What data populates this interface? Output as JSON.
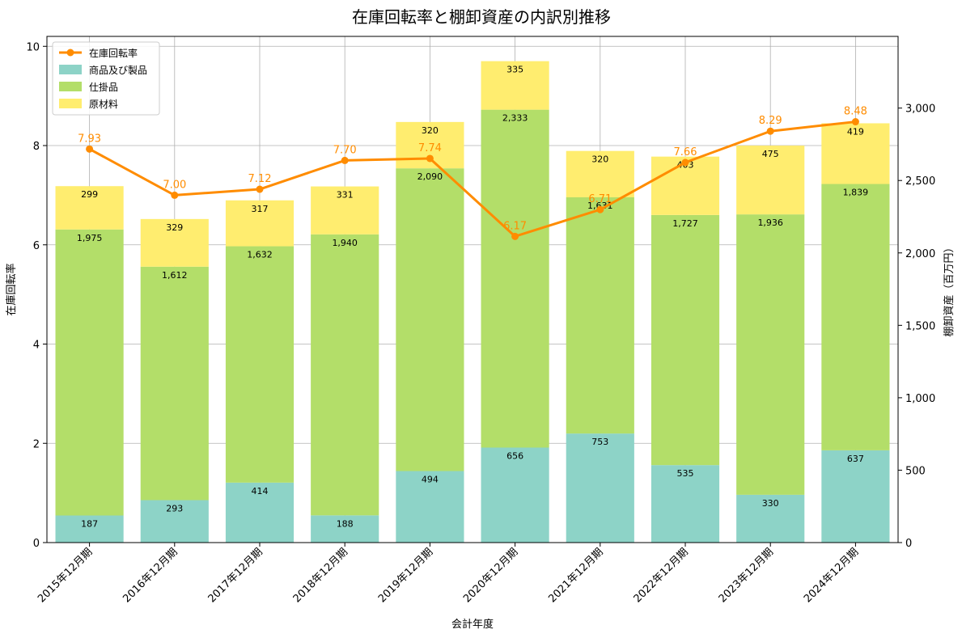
{
  "chart_data": {
    "type": "bar",
    "stacked": true,
    "title": "在庫回転率と棚卸資産の内訳別推移",
    "xlabel": "会計年度",
    "ylabel_left": "在庫回転率",
    "ylabel_right": "棚卸資産（百万円）",
    "ylim_left": [
      0,
      10.2
    ],
    "ylim_right": [
      0,
      3495
    ],
    "yticks_left": [
      0,
      2,
      4,
      6,
      8,
      10
    ],
    "yticks_right": [
      0,
      500,
      1000,
      1500,
      2000,
      2500,
      3000
    ],
    "yticks_right_labels": [
      "0",
      "500",
      "1,000",
      "1,500",
      "2,000",
      "2,500",
      "3,000"
    ],
    "grid": true,
    "legend_position": "top-left",
    "categories": [
      "2015年12月期",
      "2016年12月期",
      "2017年12月期",
      "2018年12月期",
      "2019年12月期",
      "2020年12月期",
      "2021年12月期",
      "2022年12月期",
      "2023年12月期",
      "2024年12月期"
    ],
    "series": [
      {
        "name": "商品及び製品",
        "kind": "bar",
        "axis": "right",
        "color": "#8dd3c7",
        "values": [
          187,
          293,
          414,
          188,
          494,
          656,
          753,
          535,
          330,
          637
        ],
        "labels": [
          "187",
          "293",
          "414",
          "188",
          "494",
          "656",
          "753",
          "535",
          "330",
          "637"
        ]
      },
      {
        "name": "仕掛品",
        "kind": "bar",
        "axis": "right",
        "color": "#b3de69",
        "values": [
          1975,
          1612,
          1632,
          1940,
          2090,
          2333,
          1631,
          1727,
          1936,
          1839
        ],
        "labels": [
          "1,975",
          "1,612",
          "1,632",
          "1,940",
          "2,090",
          "2,333",
          "1,631",
          "1,727",
          "1,936",
          "1,839"
        ]
      },
      {
        "name": "原材料",
        "kind": "bar",
        "axis": "right",
        "color": "#ffed6f",
        "values": [
          299,
          329,
          317,
          331,
          320,
          335,
          320,
          403,
          475,
          419
        ],
        "labels": [
          "299",
          "329",
          "317",
          "331",
          "320",
          "335",
          "320",
          "403",
          "475",
          "419"
        ]
      },
      {
        "name": "在庫回転率",
        "kind": "line",
        "axis": "left",
        "color": "#ff8c00",
        "values": [
          7.93,
          7.0,
          7.12,
          7.7,
          7.74,
          6.17,
          6.71,
          7.66,
          8.29,
          8.48
        ],
        "labels": [
          "7.93",
          "7.00",
          "7.12",
          "7.70",
          "7.74",
          "6.17",
          "6.71",
          "7.66",
          "8.29",
          "8.48"
        ]
      }
    ],
    "legend": [
      "在庫回転率",
      "商品及び製品",
      "仕掛品",
      "原材料"
    ]
  }
}
